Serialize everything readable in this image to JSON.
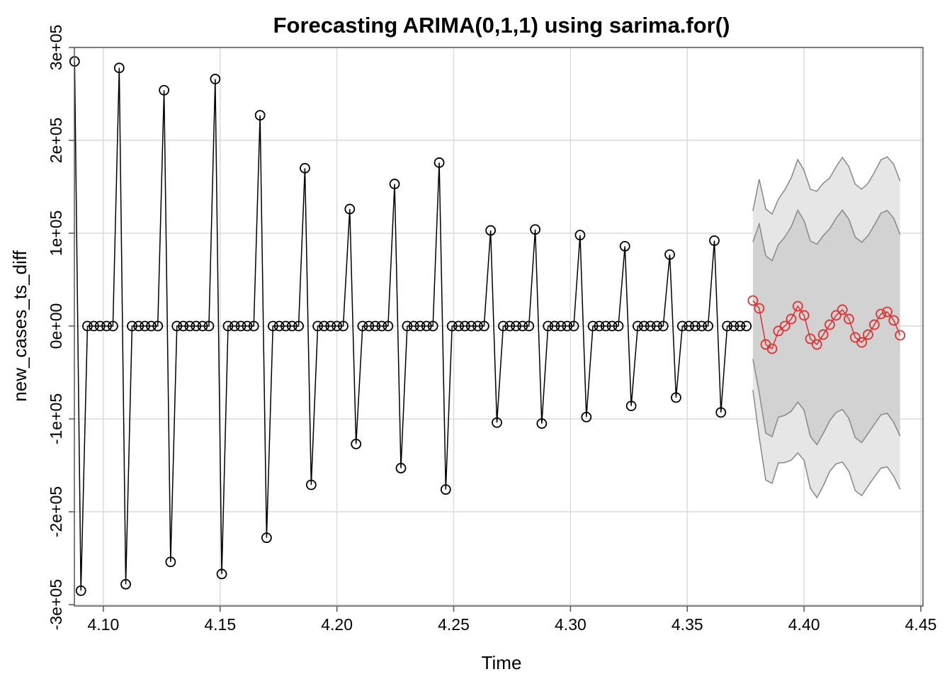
{
  "chart_data": {
    "type": "line",
    "title": "Forecasting ARIMA(0,1,1) using sarima.for()",
    "xlabel": "Time",
    "ylabel": "new_cases_ts_diff",
    "xlim": [
      4.0876,
      4.4509
    ],
    "ylim": [
      -301500,
      300000
    ],
    "xticks": [
      {
        "value": 4.1,
        "label": "4.10"
      },
      4.15,
      {
        "value": 4.2,
        "label": "4.20"
      },
      4.25,
      {
        "value": 4.3,
        "label": "4.30"
      },
      4.35,
      {
        "value": 4.4,
        "label": "4.40"
      },
      4.45
    ],
    "yticks": [
      {
        "value": -300000,
        "label": "-3e+05"
      },
      {
        "value": -200000,
        "label": "-2e+05"
      },
      {
        "value": -100000,
        "label": "-1e+05"
      },
      {
        "value": 0,
        "label": "0e+00"
      },
      {
        "value": 100000,
        "label": "1e+05"
      },
      {
        "value": 200000,
        "label": "2e+05"
      },
      {
        "value": 300000,
        "label": "3e+05"
      }
    ],
    "grid": true,
    "series": [
      {
        "color": "#000000",
        "x": [
          4.0877,
          4.0904,
          4.0932,
          4.0959,
          4.0986,
          4.1014,
          4.1041,
          4.1068,
          4.1096,
          4.1123,
          4.1151,
          4.1178,
          4.1205,
          4.1233,
          4.126,
          4.1288,
          4.1315,
          4.1342,
          4.137,
          4.1397,
          4.1425,
          4.1452,
          4.1479,
          4.1507,
          4.1534,
          4.1562,
          4.1589,
          4.1616,
          4.1644,
          4.1671,
          4.1699,
          4.1726,
          4.1753,
          4.1781,
          4.1808,
          4.1836,
          4.1863,
          4.189,
          4.1918,
          4.1945,
          4.1973,
          4.2,
          4.2027,
          4.2055,
          4.2082,
          4.211,
          4.2137,
          4.2164,
          4.2192,
          4.2219,
          4.2247,
          4.2274,
          4.2301,
          4.2329,
          4.2356,
          4.2384,
          4.2411,
          4.2438,
          4.2466,
          4.2493,
          4.2521,
          4.2548,
          4.2575,
          4.2603,
          4.263,
          4.2658,
          4.2685,
          4.2712,
          4.274,
          4.2767,
          4.2795,
          4.2822,
          4.2849,
          4.2877,
          4.2904,
          4.2932,
          4.2959,
          4.2986,
          4.3014,
          4.3041,
          4.3068,
          4.3096,
          4.3123,
          4.3151,
          4.3178,
          4.3205,
          4.3233,
          4.326,
          4.3288,
          4.3315,
          4.3342,
          4.337,
          4.3397,
          4.3425,
          4.3452,
          4.3479,
          4.3507,
          4.3534,
          4.3562,
          4.3589,
          4.3616,
          4.3644,
          4.3671,
          4.3699,
          4.3726,
          4.3753
        ],
        "values": [
          285000,
          -285000,
          0,
          0,
          0,
          0,
          0,
          278000,
          -278000,
          0,
          0,
          0,
          0,
          0,
          254000,
          -254000,
          0,
          0,
          0,
          0,
          0,
          0,
          266000,
          -267000,
          0,
          0,
          0,
          0,
          0,
          227000,
          -228000,
          0,
          0,
          0,
          0,
          0,
          170000,
          -171000,
          0,
          0,
          0,
          0,
          0,
          126000,
          -127000,
          0,
          0,
          0,
          0,
          0,
          153000,
          -153000,
          0,
          0,
          0,
          0,
          0,
          176000,
          -176000,
          0,
          0,
          0,
          0,
          0,
          0,
          103000,
          -104000,
          0,
          0,
          0,
          0,
          0,
          104000,
          -105000,
          0,
          0,
          0,
          0,
          0,
          98000,
          -98000,
          0,
          0,
          0,
          0,
          0,
          86000,
          -86000,
          0,
          0,
          0,
          0,
          0,
          77000,
          -77000,
          0,
          0,
          0,
          0,
          0,
          92000,
          -93000,
          0,
          0,
          0,
          0
        ]
      },
      {
        "color": "#e03030",
        "x": [
          4.3781,
          4.3808,
          4.3836,
          4.3863,
          4.389,
          4.3918,
          4.3945,
          4.3973,
          4.4,
          4.4027,
          4.4055,
          4.4082,
          4.411,
          4.4137,
          4.4164,
          4.4192,
          4.4219,
          4.4247,
          4.4274,
          4.4301,
          4.4329,
          4.4356,
          4.4384,
          4.4411
        ],
        "values": [
          27500,
          19100,
          -19800,
          -24400,
          -5300,
          0,
          7600,
          21400,
          11500,
          -13700,
          -19800,
          -9200,
          1500,
          11500,
          17600,
          7600,
          -12200,
          -17600,
          -9200,
          1500,
          13000,
          15300,
          6100,
          -9900
        ],
        "intervals": [
          {
            "color": "#e6e6e6",
            "upper": [
              124000,
              158100,
              126200,
              120600,
              136700,
              147000,
              159600,
              179400,
              167500,
              147300,
              145200,
              153800,
              159500,
              171500,
              181600,
              171600,
              152800,
              147400,
              153800,
              165500,
              179000,
              182300,
              174100,
              156100
            ],
            "lower": [
              -69000,
              -119900,
              -165800,
              -169400,
              -147300,
              -147000,
              -144400,
              -136600,
              -144500,
              -174700,
              -184800,
              -172200,
              -156500,
              -148500,
              -146400,
              -156400,
              -177200,
              -182600,
              -172200,
              -162500,
              -153000,
              -151700,
              -161900,
              -175900
            ]
          },
          {
            "color": "#d2d2d2",
            "upper": [
              90600,
              110000,
              75700,
              70400,
              87600,
              96100,
              107000,
              124700,
              113500,
              91600,
              88100,
              97400,
              104800,
              116100,
              124900,
              114900,
              95700,
              90300,
              97400,
              108800,
              121600,
              124500,
              116000,
              98700
            ],
            "lower": [
              -35600,
              -71800,
              -115300,
              -119200,
              -98200,
              -96100,
              -91800,
              -81900,
              -90500,
              -119000,
              -127700,
              -115800,
              -101800,
              -93100,
              -89700,
              -99700,
              -120100,
              -125500,
              -115800,
              -105800,
              -95600,
              -93900,
              -103800,
              -118500
            ]
          }
        ]
      }
    ]
  }
}
